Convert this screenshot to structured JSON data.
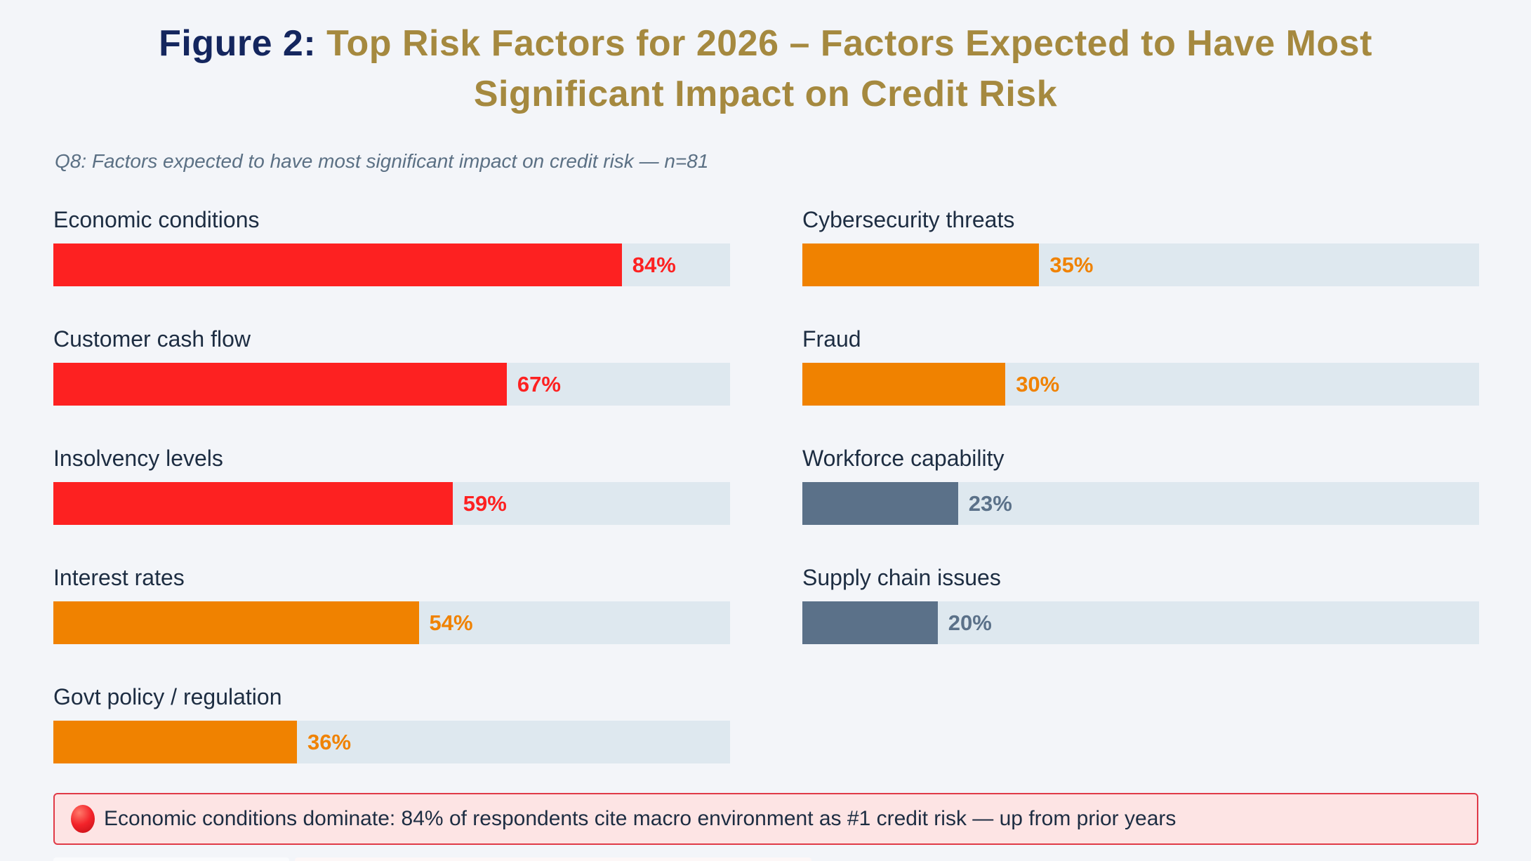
{
  "title": {
    "prefix": "Figure 2:",
    "line1": "Top Risk Factors for 2026 – Factors Expected to Have Most",
    "line2": "Significant Impact on Credit Risk"
  },
  "subtitle": "Q8: Factors expected to have most significant impact on credit risk — n=81",
  "chart_data": {
    "type": "bar",
    "orientation": "horizontal",
    "title": "Top Risk Factors for 2026 – Factors Expected to Have Most Significant Impact on Credit Risk",
    "subtitle": "Q8: Factors expected to have most significant impact on credit risk — n=81",
    "sample_size": "n=81",
    "xlim": [
      0,
      100
    ],
    "value_suffix": "%",
    "grid": false,
    "legend": false,
    "track_color": "#dee8ef",
    "palette": {
      "red": "#fd2121",
      "orange": "#f08200",
      "slate": "#5b7189"
    },
    "columns": [
      {
        "items": [
          {
            "label": "Economic conditions",
            "value": 84,
            "color": "red"
          },
          {
            "label": "Customer cash flow",
            "value": 67,
            "color": "red"
          },
          {
            "label": "Insolvency levels",
            "value": 59,
            "color": "red"
          },
          {
            "label": "Interest rates",
            "value": 54,
            "color": "orange"
          },
          {
            "label": "Govt policy / regulation",
            "value": 36,
            "color": "orange"
          }
        ]
      },
      {
        "items": [
          {
            "label": "Cybersecurity threats",
            "value": 35,
            "color": "orange"
          },
          {
            "label": "Fraud",
            "value": 30,
            "color": "orange"
          },
          {
            "label": "Workforce capability",
            "value": 23,
            "color": "slate"
          },
          {
            "label": "Supply chain issues",
            "value": 20,
            "color": "slate"
          }
        ]
      }
    ]
  },
  "annotation": {
    "icon": "red-circle-icon",
    "text": "Economic conditions dominate: 84% of respondents cite macro environment as #1 credit risk — up from prior years"
  },
  "colors": {
    "page_background": "#f3f5f9",
    "title_prefix": "#14265e",
    "title_gold": "#a5893f",
    "label_text": "#1d2d42",
    "subtitle_text": "#5b7084",
    "banner_background": "#fde4e4",
    "banner_border": "#e03a47"
  }
}
